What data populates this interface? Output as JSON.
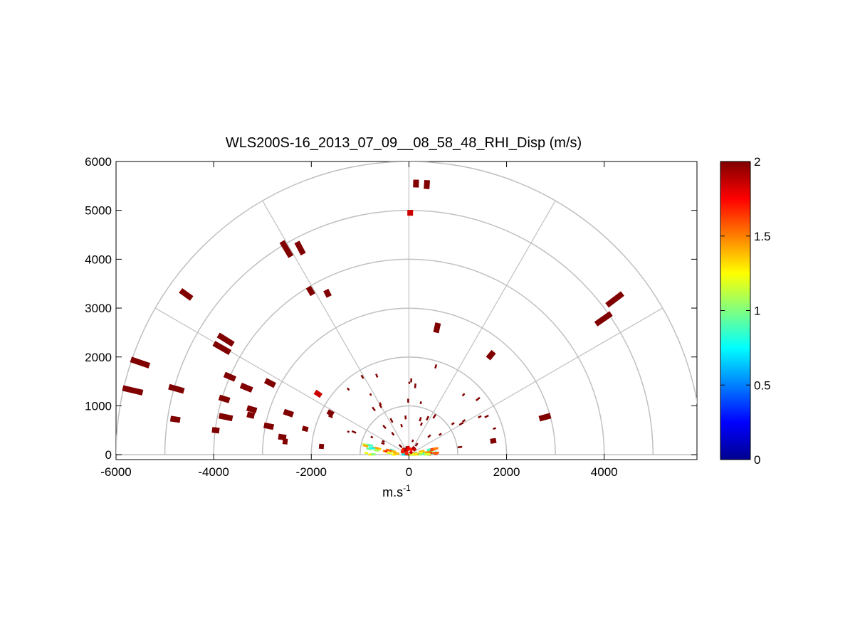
{
  "chart_data": {
    "type": "heatmap",
    "subtype": "polar-rhi-scan",
    "title": "WLS200S-16_2013_07_09__08_58_48_RHI_Disp (m/s)",
    "xlabel": "m.s",
    "xlabel_superscript": "-1",
    "ylabel": "",
    "xlim": [
      -6000,
      5900
    ],
    "ylim": [
      -100,
      6000
    ],
    "xticks": [
      -6000,
      -4000,
      -2000,
      0,
      2000,
      4000
    ],
    "xtick_labels": [
      "-6000",
      "-4000",
      "-2000",
      "0",
      "2000",
      "4000"
    ],
    "yticks": [
      0,
      1000,
      2000,
      3000,
      4000,
      5000,
      6000
    ],
    "ytick_labels": [
      "0",
      "1000",
      "2000",
      "3000",
      "4000",
      "5000",
      "6000"
    ],
    "polar_grid": {
      "range_rings": [
        1000,
        2000,
        3000,
        4000,
        5000,
        6000
      ],
      "spokes_deg": [
        0,
        30,
        60,
        90,
        120,
        150,
        180
      ]
    },
    "grid": true,
    "colorbar": {
      "colormap": "jet",
      "min": 0,
      "max": 2,
      "ticks": [
        0,
        0.5,
        1,
        1.5,
        2
      ],
      "tick_labels": [
        "0",
        "0.5",
        "1",
        "1.5",
        "2"
      ],
      "placement": "right"
    },
    "colors": {
      "grid": "#c0c0c0",
      "high_value": "#800000",
      "red": "#ff2000"
    },
    "cells": [
      {
        "range": 5550,
        "elev_deg": 88.5,
        "len": 160,
        "value": 2
      },
      {
        "range": 5540,
        "elev_deg": 86.2,
        "len": 180,
        "value": 2
      },
      {
        "range": 4950,
        "elev_deg": 89.7,
        "len": 120,
        "value": 1.85
      },
      {
        "range": 5280,
        "elev_deg": 37.0,
        "len": 400,
        "value": 2
      },
      {
        "range": 4860,
        "elev_deg": 34.9,
        "len": 380,
        "value": 2
      },
      {
        "range": 4780,
        "elev_deg": 117.8,
        "len": 280,
        "value": 2
      },
      {
        "range": 4900,
        "elev_deg": 120.8,
        "len": 360,
        "value": 2
      },
      {
        "range": 5620,
        "elev_deg": 144.3,
        "len": 280,
        "value": 2
      },
      {
        "range": 5820,
        "elev_deg": 161.1,
        "len": 400,
        "value": 2
      },
      {
        "range": 5810,
        "elev_deg": 166.9,
        "len": 420,
        "value": 2
      },
      {
        "range": 4950,
        "elev_deg": 164.2,
        "len": 320,
        "value": 2
      },
      {
        "range": 4840,
        "elev_deg": 171.4,
        "len": 200,
        "value": 2
      },
      {
        "range": 4430,
        "elev_deg": 147.9,
        "len": 360,
        "value": 2
      },
      {
        "range": 4410,
        "elev_deg": 150.3,
        "len": 380,
        "value": 2
      },
      {
        "range": 4000,
        "elev_deg": 156.5,
        "len": 240,
        "value": 2
      },
      {
        "range": 3950,
        "elev_deg": 163.2,
        "len": 220,
        "value": 2
      },
      {
        "range": 3830,
        "elev_deg": 168.4,
        "len": 280,
        "value": 2
      },
      {
        "range": 3990,
        "elev_deg": 172.8,
        "len": 150,
        "value": 2
      },
      {
        "range": 3910,
        "elev_deg": 121.0,
        "len": 180,
        "value": 2
      },
      {
        "range": 3700,
        "elev_deg": 116.8,
        "len": 150,
        "value": 2
      },
      {
        "range": 3200,
        "elev_deg": 152.7,
        "len": 220,
        "value": 2
      },
      {
        "range": 3600,
        "elev_deg": 157.6,
        "len": 250,
        "value": 2
      },
      {
        "range": 3350,
        "elev_deg": 163.9,
        "len": 200,
        "value": 2
      },
      {
        "range": 3340,
        "elev_deg": 166.0,
        "len": 150,
        "value": 2
      },
      {
        "range": 2930,
        "elev_deg": 168.5,
        "len": 200,
        "value": 2
      },
      {
        "range": 2610,
        "elev_deg": 161.0,
        "len": 200,
        "value": 2
      },
      {
        "range": 2620,
        "elev_deg": 172.1,
        "len": 160,
        "value": 2
      },
      {
        "range": 2550,
        "elev_deg": 173.9,
        "len": 100,
        "value": 2
      },
      {
        "range": 2240,
        "elev_deg": 146.2,
        "len": 150,
        "value": 1.85
      },
      {
        "range": 1820,
        "elev_deg": 152.0,
        "len": 130,
        "value": 2
      },
      {
        "range": 2190,
        "elev_deg": 166.0,
        "len": 120,
        "value": 2
      },
      {
        "range": 1800,
        "elev_deg": 174.6,
        "len": 100,
        "value": 2
      },
      {
        "range": 2660,
        "elev_deg": 77.5,
        "len": 200,
        "value": 2
      },
      {
        "range": 2640,
        "elev_deg": 50.5,
        "len": 180,
        "value": 2
      },
      {
        "range": 2890,
        "elev_deg": 15.4,
        "len": 240,
        "value": 2
      },
      {
        "range": 1750,
        "elev_deg": 9.3,
        "len": 120,
        "value": 2
      }
    ],
    "sparse_band": {
      "r_min": 150,
      "r_max": 2000,
      "count": 46,
      "len": 70,
      "value": 2
    },
    "near_origin_fan": {
      "r_max": 900,
      "low_elev_deg": 0,
      "high_elev_deg": 15,
      "value_min": 0.7,
      "value_max": 1.7
    }
  }
}
